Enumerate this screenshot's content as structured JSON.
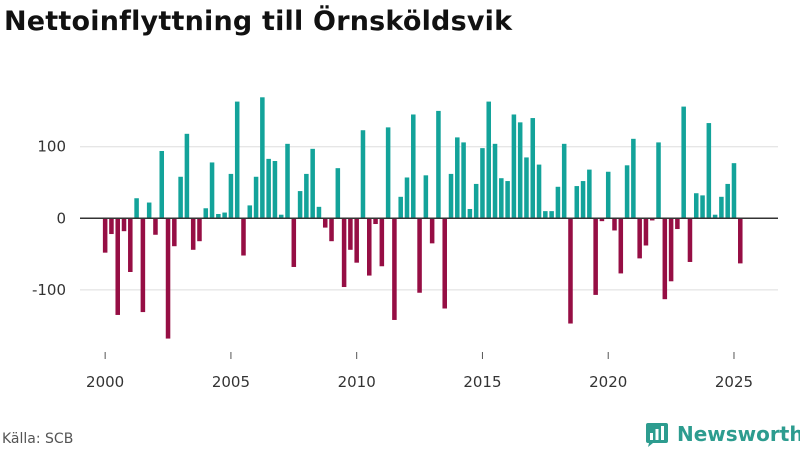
{
  "title": "Nettoinflyttning till Örnsköldsvik",
  "source": "Källa: SCB",
  "brand": {
    "name": "Newsworthy",
    "icon": "newsworthy-logo-icon"
  },
  "colors": {
    "positive": "#13a39a",
    "negative": "#960e44",
    "zero_line": "#333333",
    "grid": "#dddddd"
  },
  "chart_data": {
    "type": "bar",
    "title": "Nettoinflyttning till Örnsköldsvik",
    "xlabel": "",
    "ylabel": "",
    "ylim": [
      -170,
      175
    ],
    "xlim": [
      1999.0,
      2026.75
    ],
    "yticks": [
      100,
      0,
      -100
    ],
    "ytick_labels": [
      "100",
      "0",
      "-100"
    ],
    "xticks": [
      2000,
      2005,
      2010,
      2015,
      2020,
      2025
    ],
    "xtick_labels": [
      "2000",
      "2005",
      "2010",
      "2015",
      "2020",
      "2025"
    ],
    "grid": true,
    "frequency": "quarterly",
    "start": "2000 Q1",
    "series": [
      {
        "name": "Nettoinflyttning",
        "values": [
          -48,
          -22,
          -135,
          -18,
          -75,
          28,
          -131,
          22,
          -23,
          94,
          -168,
          -39,
          58,
          118,
          -44,
          -32,
          14,
          78,
          6,
          8,
          62,
          163,
          -52,
          18,
          58,
          169,
          83,
          80,
          5,
          104,
          -68,
          38,
          62,
          97,
          16,
          -13,
          -32,
          70,
          -96,
          -44,
          -62,
          123,
          -80,
          -8,
          -67,
          127,
          -142,
          30,
          57,
          145,
          -104,
          60,
          -35,
          150,
          -126,
          62,
          113,
          106,
          13,
          48,
          98,
          163,
          104,
          56,
          52,
          145,
          134,
          85,
          140,
          75,
          10,
          10,
          44,
          104,
          -147,
          45,
          52,
          68,
          -107,
          -4,
          65,
          -17,
          -77,
          74,
          111,
          -56,
          -38,
          -3,
          106,
          -113,
          -88,
          -15,
          156,
          -61,
          35,
          32,
          133,
          5,
          30,
          48,
          77,
          -63
        ]
      }
    ]
  }
}
